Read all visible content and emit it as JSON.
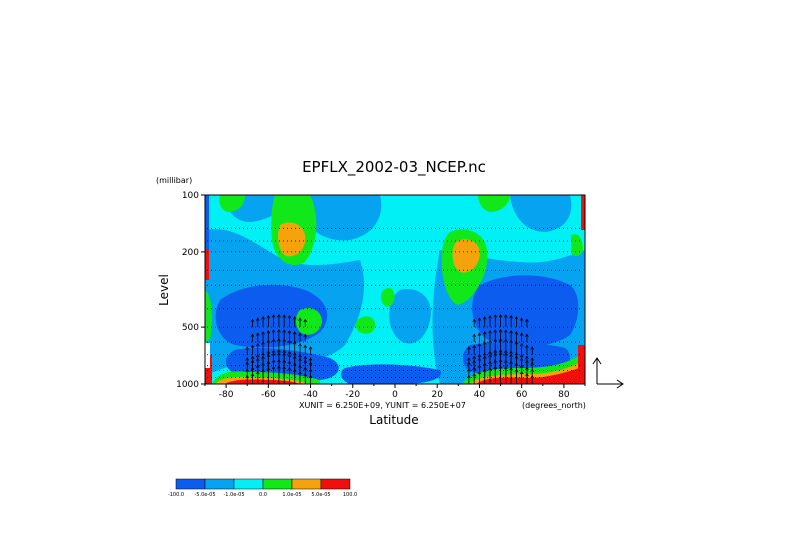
{
  "chart_data": {
    "type": "heatmap",
    "title": "EPFLX_2002-03_NCEP.nc",
    "xlabel": "Latitude",
    "xunits": "(degrees_north)",
    "ylabel": "Level",
    "yunits": "(millibar)",
    "xlim": [
      -90,
      90
    ],
    "ylim": [
      1000,
      100
    ],
    "yscale": "log",
    "xticks": [
      -80,
      -60,
      -40,
      -20,
      0,
      20,
      40,
      60,
      80
    ],
    "yticks": [
      100,
      200,
      500,
      1000
    ],
    "vector_scale_note": "XUNIT = 6.250E+09, YUNIT = 6.250E+07",
    "colorbar": {
      "colors": [
        "#0d5cf0",
        "#06a4f0",
        "#00f0f5",
        "#10e81a",
        "#f5a30d",
        "#f00f0d"
      ],
      "labels": [
        "-100.0",
        "-5.0e-05",
        "-1.0e-05",
        "0.0",
        "1.0e-05",
        "5.0e-05",
        "100.0"
      ]
    },
    "grid": "dotted horizontal lines at vector levels",
    "vectors": "upward EP-flux arrows concentrated in the lower troposphere at midlatitudes"
  }
}
